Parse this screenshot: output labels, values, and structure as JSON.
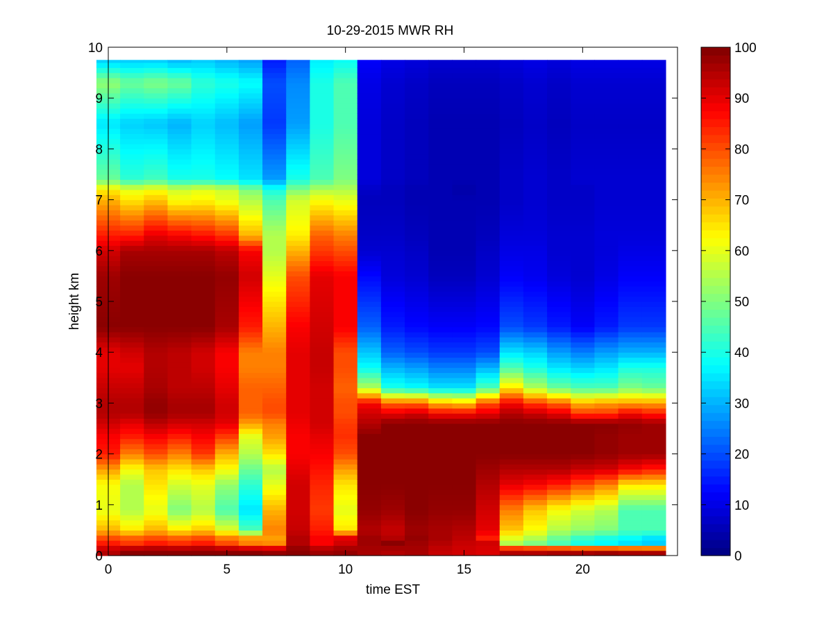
{
  "chart_data": {
    "type": "heatmap",
    "title": "10-29-2015 MWR RH",
    "xlabel": "time EST",
    "ylabel": "height km",
    "xlim": [
      0,
      24
    ],
    "ylim": [
      0,
      10
    ],
    "x_ticks": [
      0,
      5,
      10,
      15,
      20
    ],
    "y_ticks": [
      0,
      1,
      2,
      3,
      4,
      5,
      6,
      7,
      8,
      9,
      10
    ],
    "colorbar": {
      "min": 0,
      "max": 100,
      "ticks": [
        0,
        10,
        20,
        30,
        40,
        50,
        60,
        70,
        80,
        90,
        100
      ],
      "colormap": "jet"
    },
    "time_bins": [
      0,
      1,
      2,
      3,
      4,
      5,
      6,
      7,
      8,
      9,
      10,
      11,
      12,
      13,
      14,
      15,
      16,
      17,
      18,
      19,
      20,
      21,
      22,
      23
    ],
    "time_bin_width_hours": 0.5,
    "height_key_km": [
      0,
      0.1,
      0.25,
      0.35,
      0.5,
      0.9,
      1.4,
      1.7,
      2.0,
      2.35,
      2.6,
      2.8,
      3.0,
      3.3,
      3.7,
      4.0,
      4.5,
      5.5,
      6.0,
      6.3,
      7.0,
      7.2,
      7.4,
      8.5,
      9.3,
      9.75
    ],
    "rh_percent": [
      [
        95,
        99,
        99,
        99,
        99,
        99,
        99,
        98,
        99,
        97,
        98,
        96,
        95,
        96,
        93,
        92,
        91,
        95,
        95,
        96,
        96,
        97,
        96,
        96
      ],
      [
        95,
        99,
        99,
        99,
        99,
        99,
        99,
        98,
        99,
        97,
        98,
        96,
        95,
        96,
        93,
        92,
        91,
        95,
        95,
        96,
        96,
        97,
        96,
        96
      ],
      [
        85,
        82,
        85,
        83,
        85,
        80,
        75,
        74,
        95,
        88,
        92,
        97,
        99,
        97,
        95,
        93,
        92,
        55,
        50,
        45,
        40,
        38,
        35,
        33
      ],
      [
        80,
        78,
        80,
        78,
        80,
        75,
        72,
        72,
        95,
        88,
        90,
        97,
        95,
        98,
        96,
        94,
        85,
        60,
        55,
        48,
        43,
        40,
        38,
        35
      ],
      [
        70,
        65,
        70,
        65,
        68,
        60,
        45,
        75,
        93,
        85,
        65,
        95,
        93,
        97,
        96,
        95,
        90,
        68,
        62,
        55,
        52,
        50,
        45,
        45
      ],
      [
        60,
        55,
        60,
        50,
        55,
        45,
        35,
        70,
        92,
        82,
        60,
        98,
        97,
        99,
        98,
        98,
        92,
        75,
        68,
        62,
        58,
        55,
        45,
        45
      ],
      [
        62,
        55,
        65,
        58,
        60,
        52,
        42,
        60,
        92,
        84,
        65,
        99,
        99,
        99,
        99,
        99,
        95,
        90,
        88,
        85,
        80,
        75,
        65,
        65
      ],
      [
        72,
        62,
        68,
        65,
        68,
        62,
        48,
        55,
        90,
        86,
        72,
        99,
        99,
        99,
        99,
        99,
        97,
        95,
        95,
        95,
        93,
        92,
        88,
        85
      ],
      [
        85,
        75,
        80,
        75,
        82,
        70,
        55,
        65,
        88,
        88,
        80,
        99,
        99,
        99,
        99,
        99,
        99,
        99,
        99,
        99,
        99,
        98,
        97,
        97
      ],
      [
        88,
        85,
        88,
        85,
        88,
        82,
        60,
        72,
        88,
        90,
        83,
        99,
        99,
        99,
        99,
        99,
        99,
        99,
        99,
        99,
        99,
        98,
        97,
        97
      ],
      [
        92,
        90,
        94,
        92,
        92,
        90,
        72,
        75,
        89,
        92,
        82,
        95,
        99,
        99,
        99,
        99,
        99,
        99,
        99,
        99,
        99,
        99,
        98,
        97
      ],
      [
        95,
        95,
        98,
        96,
        96,
        92,
        78,
        80,
        90,
        92,
        80,
        92,
        90,
        92,
        88,
        88,
        90,
        95,
        93,
        90,
        82,
        82,
        88,
        85
      ],
      [
        95,
        95,
        98,
        96,
        96,
        92,
        78,
        80,
        90,
        92,
        80,
        88,
        78,
        78,
        70,
        68,
        80,
        88,
        82,
        78,
        70,
        72,
        72,
        72
      ],
      [
        93,
        93,
        96,
        94,
        94,
        90,
        78,
        78,
        90,
        92,
        78,
        55,
        40,
        38,
        35,
        35,
        45,
        65,
        55,
        48,
        45,
        45,
        50,
        48
      ],
      [
        90,
        90,
        95,
        94,
        92,
        88,
        75,
        75,
        90,
        93,
        80,
        38,
        30,
        28,
        25,
        25,
        30,
        45,
        40,
        35,
        33,
        35,
        40,
        40
      ],
      [
        90,
        92,
        95,
        94,
        92,
        88,
        75,
        75,
        90,
        93,
        80,
        32,
        22,
        20,
        18,
        18,
        20,
        35,
        33,
        28,
        25,
        28,
        30,
        30
      ],
      [
        99,
        99,
        99,
        99,
        99,
        96,
        85,
        70,
        88,
        92,
        88,
        22,
        15,
        13,
        12,
        12,
        13,
        20,
        18,
        15,
        12,
        15,
        18,
        18
      ],
      [
        97,
        99,
        99,
        99,
        99,
        98,
        92,
        60,
        80,
        90,
        88,
        13,
        9,
        8,
        6,
        6,
        8,
        12,
        11,
        9,
        8,
        10,
        12,
        12
      ],
      [
        92,
        96,
        96,
        96,
        96,
        94,
        88,
        55,
        70,
        82,
        80,
        8,
        8,
        7,
        5,
        5,
        7,
        10,
        10,
        8,
        8,
        9,
        10,
        10
      ],
      [
        85,
        85,
        90,
        88,
        86,
        83,
        70,
        55,
        64,
        78,
        75,
        7,
        7,
        6,
        5,
        5,
        6,
        9,
        9,
        8,
        8,
        9,
        9,
        9
      ],
      [
        70,
        65,
        68,
        62,
        63,
        60,
        55,
        45,
        58,
        62,
        60,
        6,
        6,
        5,
        5,
        5,
        5,
        7,
        8,
        7,
        7,
        8,
        8,
        8
      ],
      [
        64,
        60,
        62,
        58,
        60,
        58,
        50,
        40,
        50,
        55,
        55,
        7,
        6,
        5,
        5,
        4,
        5,
        7,
        8,
        7,
        7,
        8,
        8,
        8
      ],
      [
        48,
        42,
        44,
        40,
        40,
        38,
        35,
        28,
        40,
        45,
        50,
        9,
        7,
        6,
        5,
        5,
        5,
        7,
        8,
        7,
        8,
        8,
        8,
        8
      ],
      [
        35,
        33,
        32,
        30,
        33,
        31,
        28,
        18,
        28,
        40,
        45,
        9,
        7,
        6,
        5,
        5,
        5,
        6,
        7,
        6,
        7,
        7,
        7,
        7
      ],
      [
        52,
        48,
        50,
        48,
        42,
        40,
        38,
        20,
        26,
        40,
        45,
        10,
        8,
        7,
        6,
        6,
        6,
        7,
        8,
        7,
        8,
        8,
        8,
        8
      ],
      [
        32,
        32,
        32,
        30,
        32,
        30,
        28,
        15,
        22,
        36,
        38,
        12,
        10,
        9,
        8,
        8,
        8,
        9,
        10,
        9,
        10,
        10,
        10,
        10
      ]
    ]
  }
}
